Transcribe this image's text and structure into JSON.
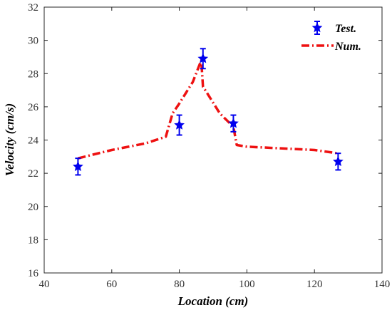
{
  "chart_data": {
    "type": "line",
    "xlabel": "Location (cm)",
    "ylabel": "Velocity (cm/s)",
    "xlim": [
      40,
      140
    ],
    "ylim": [
      16,
      32
    ],
    "xticks": [
      40,
      60,
      80,
      100,
      120,
      140
    ],
    "yticks": [
      16,
      18,
      20,
      22,
      24,
      26,
      28,
      30,
      32
    ],
    "grid": false,
    "legend_position": "top-right",
    "series": [
      {
        "name": "Test.",
        "type": "scatter-errorbar",
        "color": "#0000ee",
        "marker": "star",
        "x": [
          50,
          80,
          87,
          96,
          127
        ],
        "y": [
          22.4,
          24.9,
          28.9,
          25.0,
          22.7
        ],
        "error": [
          0.5,
          0.6,
          0.6,
          0.5,
          0.5
        ]
      },
      {
        "name": "Num.",
        "type": "line",
        "color": "#ee1111",
        "dash": "dash-dot",
        "x": [
          50,
          60,
          70,
          76,
          78,
          80,
          84,
          86.5,
          87,
          88,
          92,
          96,
          97,
          100,
          110,
          120,
          127
        ],
        "y": [
          22.9,
          23.4,
          23.8,
          24.2,
          25.6,
          26.2,
          27.5,
          28.8,
          27.2,
          26.9,
          25.6,
          24.8,
          23.7,
          23.6,
          23.5,
          23.4,
          23.2
        ]
      }
    ]
  }
}
